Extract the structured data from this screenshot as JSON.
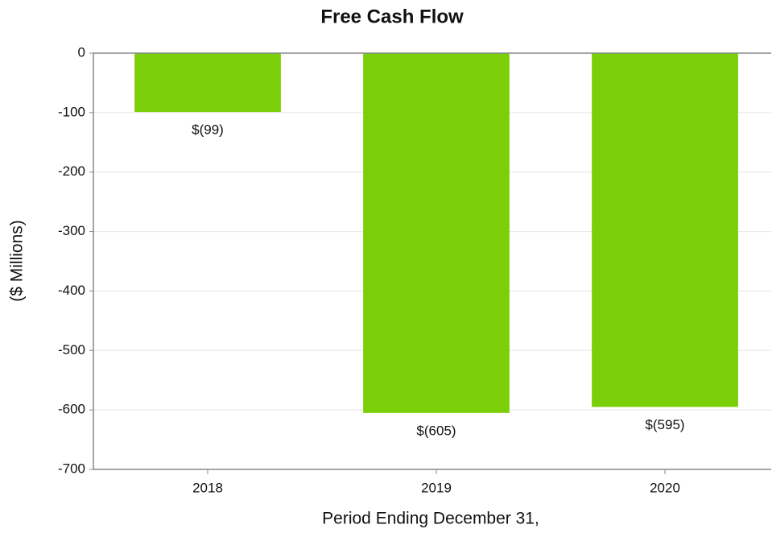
{
  "chart_data": {
    "type": "bar",
    "title": "Free Cash Flow",
    "x_label": "Period Ending December 31,",
    "y_label": "($ Millions)",
    "categories": [
      "2018",
      "2019",
      "2020"
    ],
    "values": [
      -99,
      -605,
      -595
    ],
    "value_labels": [
      "$(99)",
      "$(605)",
      "$(595)"
    ],
    "color": "#7bcf09",
    "ylim": [
      -700,
      0
    ],
    "yticks": [
      0,
      -100,
      -200,
      -300,
      -400,
      -500,
      -600,
      -700
    ],
    "grid": true
  }
}
